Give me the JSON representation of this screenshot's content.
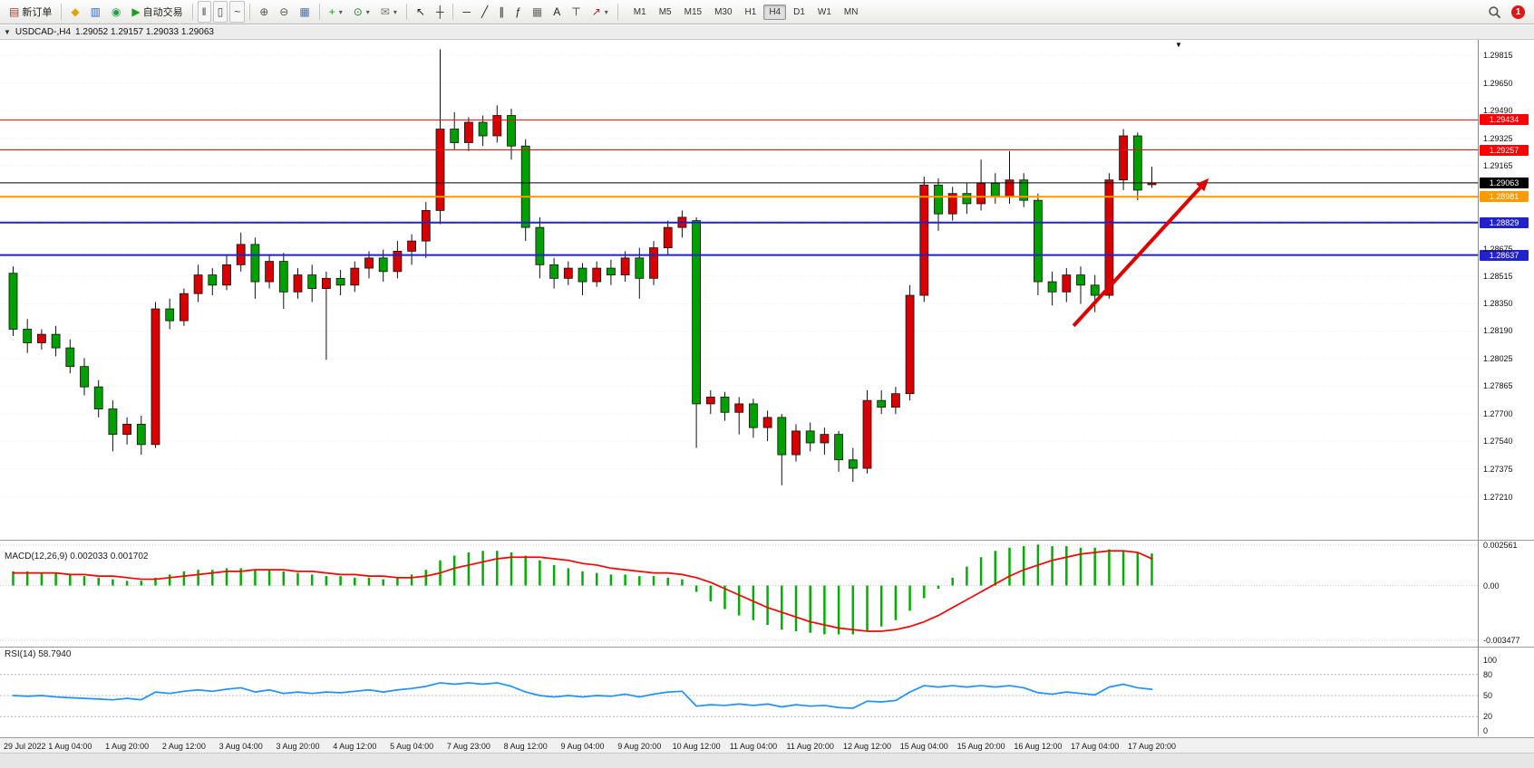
{
  "toolbar": {
    "items": [
      {
        "type": "button",
        "name": "new-order-button",
        "glyph": "▤",
        "glyph_color": "#b03a20",
        "label": "新订单"
      },
      {
        "type": "separator"
      },
      {
        "type": "button",
        "name": "new-chart-button",
        "glyph": "◆",
        "glyph_color": "#e8a000"
      },
      {
        "type": "button",
        "name": "profiles-button",
        "glyph": "▥",
        "glyph_color": "#3565c5"
      },
      {
        "type": "button",
        "name": "refresh-button",
        "glyph": "◉",
        "glyph_color": "#22a046"
      },
      {
        "type": "button",
        "name": "autotrade-button",
        "glyph": "▶",
        "glyph_color": "#18a018",
        "label": "自动交易"
      },
      {
        "type": "separator"
      },
      {
        "type": "button",
        "name": "bar-chart-button",
        "glyph": "‖",
        "glyph_color": "#444",
        "framed": true
      },
      {
        "type": "button",
        "name": "candlestick-chart-button",
        "glyph": "▯",
        "glyph_color": "#444",
        "framed": true
      },
      {
        "type": "button",
        "name": "line-chart-button",
        "glyph": "~",
        "glyph_color": "#444",
        "framed": true
      },
      {
        "type": "separator"
      },
      {
        "type": "button",
        "name": "zoom-in-button",
        "glyph": "⊕",
        "glyph_color": "#555"
      },
      {
        "type": "button",
        "name": "zoom-out-button",
        "glyph": "⊖",
        "glyph_color": "#555"
      },
      {
        "type": "button",
        "name": "tile-windows-button",
        "glyph": "▦",
        "glyph_color": "#4a6fa5"
      },
      {
        "type": "separator"
      },
      {
        "type": "button",
        "name": "indicators-button",
        "glyph": "+",
        "glyph_color": "#18a018",
        "dropdown": true
      },
      {
        "type": "button",
        "name": "periods-button",
        "glyph": "⊙",
        "glyph_color": "#208030",
        "dropdown": true
      },
      {
        "type": "button",
        "name": "templates-button",
        "glyph": "✉",
        "glyph_color": "#777",
        "dropdown": true
      },
      {
        "type": "separator"
      },
      {
        "type": "button",
        "name": "cursor-button",
        "glyph": "↖",
        "glyph_color": "#222"
      },
      {
        "type": "button",
        "name": "crosshair-button",
        "glyph": "┼",
        "glyph_color": "#222"
      },
      {
        "type": "separator"
      },
      {
        "type": "button",
        "name": "horizontal-line-button",
        "glyph": "─",
        "glyph_color": "#222"
      },
      {
        "type": "button",
        "name": "trendline-button",
        "glyph": "╱",
        "glyph_color": "#222"
      },
      {
        "type": "button",
        "name": "channel-button",
        "glyph": "∥",
        "glyph_color": "#222"
      },
      {
        "type": "button",
        "name": "fibonacci-button",
        "glyph": "ƒ",
        "glyph_color": "#222"
      },
      {
        "type": "button",
        "name": "shapes-button",
        "glyph": "▦",
        "glyph_color": "#666"
      },
      {
        "type": "button",
        "name": "text-button",
        "glyph": "A",
        "glyph_color": "#222"
      },
      {
        "type": "button",
        "name": "text-label-button",
        "glyph": "⊤",
        "glyph_color": "#222"
      },
      {
        "type": "button",
        "name": "arrows-button",
        "glyph": "↗",
        "glyph_color": "#b02020",
        "dropdown": true
      },
      {
        "type": "separator"
      }
    ],
    "timeframes": [
      "M1",
      "M5",
      "M15",
      "M30",
      "H1",
      "H4",
      "D1",
      "W1",
      "MN"
    ],
    "active_timeframe": "H4",
    "notification_count": "1"
  },
  "chart_header": {
    "collapse": "▼",
    "symbol_period": "USDCAD-,H4",
    "ohlc": "1.29052 1.29157 1.29033 1.29063"
  },
  "chart_data": [
    {
      "type": "candlestick",
      "symbol": "USDCAD-",
      "timeframe": "H4",
      "up_color": "#d80000",
      "down_color": "#00a000",
      "ylim": [
        1.26964,
        1.29906
      ],
      "price_axis_labels": [
        "1.29815",
        "1.29650",
        "1.29490",
        "1.29325",
        "1.29165",
        "1.29000",
        "1.28840",
        "1.28675",
        "1.28515",
        "1.28350",
        "1.28190",
        "1.28025",
        "1.27865",
        "1.27700",
        "1.27540",
        "1.27375",
        "1.27210"
      ],
      "time_labels": [
        "29 Jul 2022",
        "1 Aug 04:00",
        "1 Aug 20:00",
        "2 Aug 12:00",
        "3 Aug 04:00",
        "3 Aug 20:00",
        "4 Aug 12:00",
        "5 Aug 04:00",
        "7 Aug 23:00",
        "8 Aug 12:00",
        "9 Aug 04:00",
        "9 Aug 20:00",
        "10 Aug 12:00",
        "11 Aug 04:00",
        "11 Aug 20:00",
        "12 Aug 12:00",
        "15 Aug 04:00",
        "15 Aug 20:00",
        "16 Aug 12:00",
        "17 Aug 04:00",
        "17 Aug 20:00"
      ],
      "candles": [
        [
          1.2853,
          1.2857,
          1.2816,
          1.282
        ],
        [
          1.282,
          1.2826,
          1.2806,
          1.2812
        ],
        [
          1.2812,
          1.282,
          1.2808,
          1.2817
        ],
        [
          1.2817,
          1.2822,
          1.2804,
          1.2809
        ],
        [
          1.2809,
          1.2814,
          1.2794,
          1.2798
        ],
        [
          1.2798,
          1.2803,
          1.2781,
          1.2786
        ],
        [
          1.2786,
          1.279,
          1.2768,
          1.2773
        ],
        [
          1.2773,
          1.2778,
          1.2748,
          1.2758
        ],
        [
          1.2758,
          1.2768,
          1.2752,
          1.2764
        ],
        [
          1.2764,
          1.2769,
          1.2746,
          1.2752
        ],
        [
          1.2752,
          1.2836,
          1.275,
          1.2832
        ],
        [
          1.2832,
          1.2838,
          1.282,
          1.2825
        ],
        [
          1.2825,
          1.2844,
          1.2822,
          1.2841
        ],
        [
          1.2841,
          1.2858,
          1.2836,
          1.2852
        ],
        [
          1.2852,
          1.2856,
          1.284,
          1.2846
        ],
        [
          1.2846,
          1.2864,
          1.2843,
          1.2858
        ],
        [
          1.2858,
          1.2877,
          1.2854,
          1.287
        ],
        [
          1.287,
          1.2874,
          1.2838,
          1.2848
        ],
        [
          1.2848,
          1.2864,
          1.2844,
          1.286
        ],
        [
          1.286,
          1.2865,
          1.2832,
          1.2842
        ],
        [
          1.2842,
          1.2856,
          1.2838,
          1.2852
        ],
        [
          1.2852,
          1.2858,
          1.2836,
          1.2844
        ],
        [
          1.2844,
          1.2854,
          1.2802,
          1.285
        ],
        [
          1.285,
          1.2855,
          1.284,
          1.2846
        ],
        [
          1.2846,
          1.286,
          1.2842,
          1.2856
        ],
        [
          1.2856,
          1.2866,
          1.285,
          1.2862
        ],
        [
          1.2862,
          1.2867,
          1.2848,
          1.2854
        ],
        [
          1.2854,
          1.2872,
          1.285,
          1.2866
        ],
        [
          1.2866,
          1.2876,
          1.2858,
          1.2872
        ],
        [
          1.2872,
          1.2895,
          1.2862,
          1.289
        ],
        [
          1.289,
          1.2985,
          1.2882,
          1.2938
        ],
        [
          1.2938,
          1.2948,
          1.2926,
          1.293
        ],
        [
          1.293,
          1.2945,
          1.2925,
          1.2942
        ],
        [
          1.2942,
          1.2946,
          1.2928,
          1.2934
        ],
        [
          1.2934,
          1.2952,
          1.293,
          1.2946
        ],
        [
          1.2946,
          1.295,
          1.292,
          1.2928
        ],
        [
          1.2928,
          1.2932,
          1.2872,
          1.288
        ],
        [
          1.288,
          1.2886,
          1.285,
          1.2858
        ],
        [
          1.2858,
          1.2862,
          1.2844,
          1.285
        ],
        [
          1.285,
          1.286,
          1.2846,
          1.2856
        ],
        [
          1.2856,
          1.2859,
          1.284,
          1.2848
        ],
        [
          1.2848,
          1.286,
          1.2845,
          1.2856
        ],
        [
          1.2856,
          1.2861,
          1.2846,
          1.2852
        ],
        [
          1.2852,
          1.2866,
          1.2848,
          1.2862
        ],
        [
          1.2862,
          1.2868,
          1.2838,
          1.285
        ],
        [
          1.285,
          1.2872,
          1.2846,
          1.2868
        ],
        [
          1.2868,
          1.2884,
          1.2864,
          1.288
        ],
        [
          1.288,
          1.289,
          1.2874,
          1.2886
        ],
        [
          1.2884,
          1.2886,
          1.275,
          1.2776
        ],
        [
          1.2776,
          1.2784,
          1.277,
          1.278
        ],
        [
          1.278,
          1.2783,
          1.2766,
          1.2771
        ],
        [
          1.2771,
          1.278,
          1.2758,
          1.2776
        ],
        [
          1.2776,
          1.2779,
          1.2756,
          1.2762
        ],
        [
          1.2762,
          1.2772,
          1.2754,
          1.2768
        ],
        [
          1.2768,
          1.277,
          1.2728,
          1.2746
        ],
        [
          1.2746,
          1.2764,
          1.2742,
          1.276
        ],
        [
          1.276,
          1.2765,
          1.2748,
          1.2753
        ],
        [
          1.2753,
          1.2762,
          1.2746,
          1.2758
        ],
        [
          1.2758,
          1.276,
          1.2736,
          1.2743
        ],
        [
          1.2743,
          1.275,
          1.273,
          1.2738
        ],
        [
          1.2738,
          1.2784,
          1.2735,
          1.2778
        ],
        [
          1.2778,
          1.2784,
          1.277,
          1.2774
        ],
        [
          1.2774,
          1.2786,
          1.277,
          1.2782
        ],
        [
          1.2782,
          1.2846,
          1.2778,
          1.284
        ],
        [
          1.284,
          1.291,
          1.2836,
          1.2905
        ],
        [
          1.2905,
          1.2909,
          1.2878,
          1.2888
        ],
        [
          1.2888,
          1.2904,
          1.2884,
          1.29
        ],
        [
          1.29,
          1.2906,
          1.2888,
          1.2894
        ],
        [
          1.2894,
          1.292,
          1.289,
          1.2906
        ],
        [
          1.2906,
          1.2912,
          1.2894,
          1.2898
        ],
        [
          1.2898,
          1.2925,
          1.2894,
          1.2908
        ],
        [
          1.2908,
          1.2912,
          1.2892,
          1.2896
        ],
        [
          1.2896,
          1.29,
          1.284,
          1.2848
        ],
        [
          1.2848,
          1.2854,
          1.2834,
          1.2842
        ],
        [
          1.2842,
          1.2856,
          1.2836,
          1.2852
        ],
        [
          1.2852,
          1.2857,
          1.2835,
          1.2846
        ],
        [
          1.2846,
          1.2852,
          1.283,
          1.284
        ],
        [
          1.284,
          1.2912,
          1.2838,
          1.2908
        ],
        [
          1.2908,
          1.2938,
          1.2902,
          1.2934
        ],
        [
          1.2934,
          1.2936,
          1.2896,
          1.2902
        ],
        [
          1.29052,
          1.29157,
          1.29033,
          1.29063
        ]
      ],
      "lines": [
        {
          "price": 1.29434,
          "color": "#ff0000",
          "label": "1.29434",
          "width": 1
        },
        {
          "price": 1.29257,
          "color": "#ff0000",
          "label": "1.29257",
          "width": 1
        },
        {
          "price": 1.29063,
          "color": "#000000",
          "label": "1.29063",
          "width": 1
        },
        {
          "price": 1.28981,
          "color": "#ff9900",
          "label": "1.28981",
          "width": 2
        },
        {
          "price": 1.28829,
          "color": "#2222cc",
          "label": "1.28829",
          "width": 2
        },
        {
          "price": 1.28637,
          "color": "#2222cc",
          "label": "1.28637",
          "width": 2
        }
      ],
      "arrow": {
        "x1_index": 74.5,
        "price1": 1.2822,
        "x2_index": 84,
        "price2": 1.2909,
        "color": "#e00000"
      }
    },
    {
      "type": "bar",
      "title": "MACD(12,26,9)",
      "values_text": "0.002033 0.001702",
      "histogram_color": "#00b000",
      "signal_color": "#ff0000",
      "scale_labels": [
        "0.002561",
        "0.00",
        "-0.003477"
      ],
      "ylim": [
        -0.003477,
        0.002561
      ],
      "histogram": [
        0.0009,
        0.0009,
        0.0008,
        0.0008,
        0.0007,
        0.0006,
        0.0005,
        0.0004,
        0.0003,
        0.0003,
        0.0005,
        0.0007,
        0.0009,
        0.001,
        0.001,
        0.0011,
        0.0011,
        0.001,
        0.001,
        0.0009,
        0.0008,
        0.0007,
        0.0006,
        0.0006,
        0.0005,
        0.0005,
        0.0004,
        0.0005,
        0.0007,
        0.001,
        0.0016,
        0.0019,
        0.0021,
        0.0022,
        0.0022,
        0.0021,
        0.0019,
        0.0016,
        0.0013,
        0.0011,
        0.0009,
        0.0008,
        0.0007,
        0.0007,
        0.0006,
        0.0006,
        0.0005,
        0.0004,
        -0.0004,
        -0.001,
        -0.0015,
        -0.0019,
        -0.0022,
        -0.0025,
        -0.0028,
        -0.0029,
        -0.003,
        -0.0031,
        -0.0031,
        -0.0031,
        -0.0029,
        -0.0026,
        -0.0022,
        -0.0016,
        -0.0008,
        -0.0002,
        0.0005,
        0.0012,
        0.0018,
        0.0022,
        0.0024,
        0.0025,
        0.0026,
        0.0025,
        0.0025,
        0.0024,
        0.0024,
        0.0023,
        0.0022,
        0.0021,
        0.002033
      ],
      "signal": [
        0.0008,
        0.0008,
        0.0008,
        0.0008,
        0.0007,
        0.0007,
        0.0006,
        0.0006,
        0.0005,
        0.0004,
        0.0004,
        0.0005,
        0.0006,
        0.0007,
        0.0008,
        0.0009,
        0.0009,
        0.001,
        0.001,
        0.001,
        0.0009,
        0.0009,
        0.0008,
        0.0007,
        0.0007,
        0.0006,
        0.0006,
        0.0005,
        0.0005,
        0.0006,
        0.0008,
        0.0011,
        0.0013,
        0.0015,
        0.0017,
        0.0018,
        0.0018,
        0.0018,
        0.0017,
        0.0016,
        0.0014,
        0.0013,
        0.0011,
        0.001,
        0.0009,
        0.0008,
        0.0008,
        0.0007,
        0.0005,
        0.0002,
        -0.0002,
        -0.0006,
        -0.001,
        -0.0014,
        -0.0017,
        -0.002,
        -0.0023,
        -0.0025,
        -0.0027,
        -0.0028,
        -0.0029,
        -0.0029,
        -0.0028,
        -0.0026,
        -0.0023,
        -0.0019,
        -0.0014,
        -0.0009,
        -0.0004,
        0.0001,
        0.0006,
        0.001,
        0.0013,
        0.0016,
        0.0018,
        0.002,
        0.0021,
        0.0022,
        0.0022,
        0.0021,
        0.001702
      ]
    },
    {
      "type": "line",
      "title": "RSI(14)",
      "value_text": "58.7940",
      "line_color": "#1e90ff",
      "levels": [
        80,
        50,
        20
      ],
      "scale_labels": [
        "100",
        "80",
        "50",
        "20",
        "0"
      ],
      "ylim": [
        0,
        100
      ],
      "values": [
        50,
        49,
        50,
        48,
        47,
        46,
        45,
        44,
        46,
        44,
        55,
        53,
        56,
        58,
        56,
        59,
        61,
        55,
        58,
        53,
        55,
        53,
        55,
        54,
        56,
        58,
        55,
        58,
        60,
        63,
        68,
        66,
        68,
        66,
        68,
        63,
        55,
        50,
        48,
        50,
        48,
        50,
        49,
        52,
        48,
        52,
        55,
        56,
        35,
        37,
        36,
        38,
        36,
        38,
        34,
        37,
        35,
        36,
        33,
        32,
        42,
        41,
        43,
        55,
        64,
        62,
        64,
        62,
        64,
        62,
        64,
        61,
        54,
        52,
        55,
        53,
        51,
        62,
        66,
        61,
        58.79
      ]
    }
  ]
}
